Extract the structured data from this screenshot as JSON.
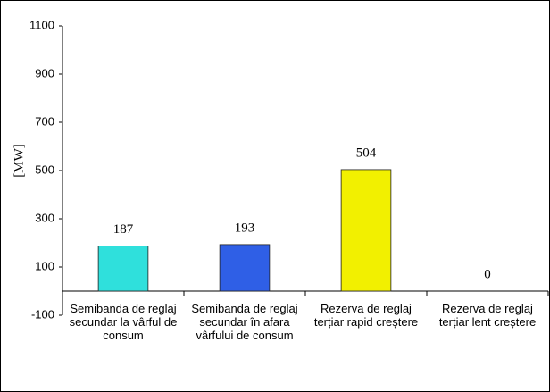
{
  "chart_data": {
    "type": "bar",
    "y_label": "[MW]",
    "categories": [
      "Semibanda de reglaj secundar la vârful de consum",
      "Semibanda de reglaj secundar în afara vârfului de consum",
      "Rezerva de reglaj terțiar rapid creștere",
      "Rezerva de reglaj terțiar lent creștere"
    ],
    "values": [
      187,
      193,
      504,
      0
    ],
    "colors": [
      "#2fe0dc",
      "#2f5fe6",
      "#f2f000",
      "#888888"
    ],
    "ylim": [
      -100,
      1100
    ],
    "yticks": [
      -100,
      100,
      300,
      500,
      700,
      900,
      1100
    ],
    "grid": false
  }
}
